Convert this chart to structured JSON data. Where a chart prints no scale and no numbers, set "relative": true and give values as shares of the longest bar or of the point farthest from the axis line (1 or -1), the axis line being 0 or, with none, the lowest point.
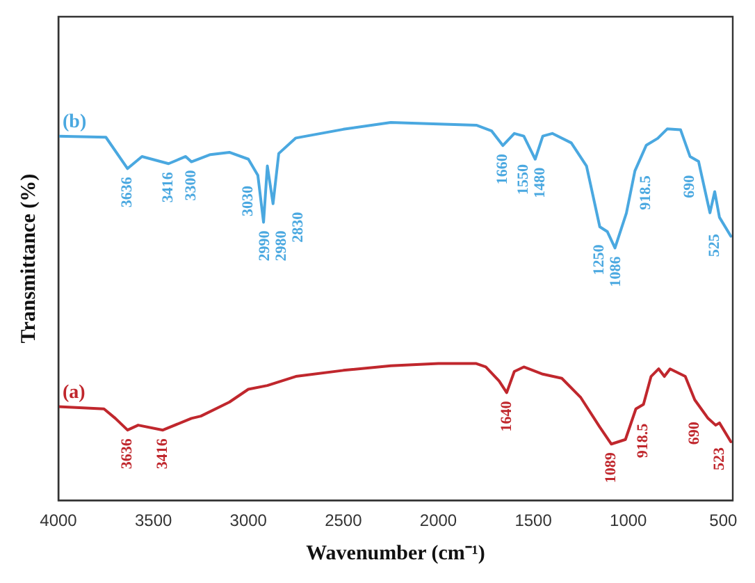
{
  "chart_data": {
    "type": "line",
    "relative": true,
    "xlabel": "Wavenumber (cm⁻¹)",
    "ylabel": "Transmittance (%)",
    "xlim": [
      4000,
      450
    ],
    "xticks": [
      4000,
      3500,
      3000,
      2500,
      2000,
      1500,
      1000,
      500
    ],
    "grid": false,
    "legend": false,
    "marker": "none",
    "line_style": "solid",
    "series": [
      {
        "name": "(b)",
        "color": "#4aa8e0",
        "x": [
          4000,
          3750,
          3636,
          3560,
          3420,
          3330,
          3300,
          3200,
          3100,
          3000,
          2950,
          2920,
          2900,
          2870,
          2840,
          2750,
          2500,
          2250,
          2000,
          1800,
          1720,
          1660,
          1600,
          1550,
          1490,
          1450,
          1400,
          1300,
          1220,
          1150,
          1110,
          1070,
          1010,
          965,
          905,
          845,
          795,
          725,
          675,
          630,
          570,
          545,
          520,
          460
        ],
        "values": [
          0.964,
          0.961,
          0.878,
          0.91,
          0.891,
          0.91,
          0.896,
          0.915,
          0.921,
          0.903,
          0.86,
          0.736,
          0.885,
          0.785,
          0.918,
          0.959,
          0.982,
          1.0,
          0.996,
          0.993,
          0.978,
          0.939,
          0.971,
          0.964,
          0.903,
          0.964,
          0.971,
          0.946,
          0.885,
          0.724,
          0.711,
          0.668,
          0.76,
          0.872,
          0.94,
          0.958,
          0.983,
          0.981,
          0.91,
          0.897,
          0.761,
          0.817,
          0.749,
          0.699
        ]
      },
      {
        "name": "(a)",
        "color": "#c0272d",
        "x": [
          4000,
          3760,
          3700,
          3636,
          3580,
          3450,
          3300,
          3250,
          3100,
          3000,
          2900,
          2750,
          2500,
          2250,
          2000,
          1800,
          1750,
          1680,
          1640,
          1600,
          1550,
          1450,
          1350,
          1250,
          1150,
          1089,
          1015,
          960,
          920,
          880,
          840,
          810,
          780,
          700,
          650,
          580,
          540,
          520,
          460
        ],
        "values": [
          0.248,
          0.242,
          0.217,
          0.186,
          0.199,
          0.186,
          0.217,
          0.223,
          0.26,
          0.294,
          0.304,
          0.328,
          0.344,
          0.356,
          0.362,
          0.362,
          0.353,
          0.316,
          0.285,
          0.341,
          0.353,
          0.334,
          0.323,
          0.272,
          0.194,
          0.149,
          0.161,
          0.242,
          0.254,
          0.328,
          0.348,
          0.328,
          0.348,
          0.328,
          0.266,
          0.217,
          0.199,
          0.205,
          0.155
        ]
      }
    ],
    "annotations": [
      {
        "text": "3636",
        "x": 3636,
        "y": 0.878
      },
      {
        "text": "3416",
        "x": 3420,
        "y": 0.891
      },
      {
        "text": "3300",
        "x": 3300,
        "y": 0.896
      },
      {
        "text": "3030",
        "x": 3000,
        "y": 0.903
      },
      {
        "text": "2990",
        "x": 2920,
        "y": 0.736
      },
      {
        "text": "2980",
        "x": 2920,
        "y": 0.736
      },
      {
        "text": "2830",
        "x": 2870,
        "y": 0.785
      },
      {
        "text": "1660",
        "x": 1660,
        "y": 0.939
      },
      {
        "text": "1550",
        "x": 1550,
        "y": 0.964
      },
      {
        "text": "1480",
        "x": 1490,
        "y": 0.903
      },
      {
        "text": "1250",
        "x": 1150,
        "y": 0.724
      },
      {
        "text": "1086",
        "x": 1070,
        "y": 0.668
      },
      {
        "text": "918.5",
        "x": 905,
        "y": 0.94
      },
      {
        "text": "690",
        "x": 675,
        "y": 0.91
      },
      {
        "text": "525",
        "x": 545,
        "y": 0.817
      },
      {
        "text": "3636",
        "x": 3636,
        "y": 0.186
      },
      {
        "text": "3416",
        "x": 3450,
        "y": 0.186
      },
      {
        "text": "1640",
        "x": 1640,
        "y": 0.285
      },
      {
        "text": "1089",
        "x": 1089,
        "y": 0.149
      },
      {
        "text": "918.5",
        "x": 920,
        "y": 0.254
      },
      {
        "text": "690",
        "x": 650,
        "y": 0.266
      },
      {
        "text": "523",
        "x": 520,
        "y": 0.205
      }
    ]
  }
}
